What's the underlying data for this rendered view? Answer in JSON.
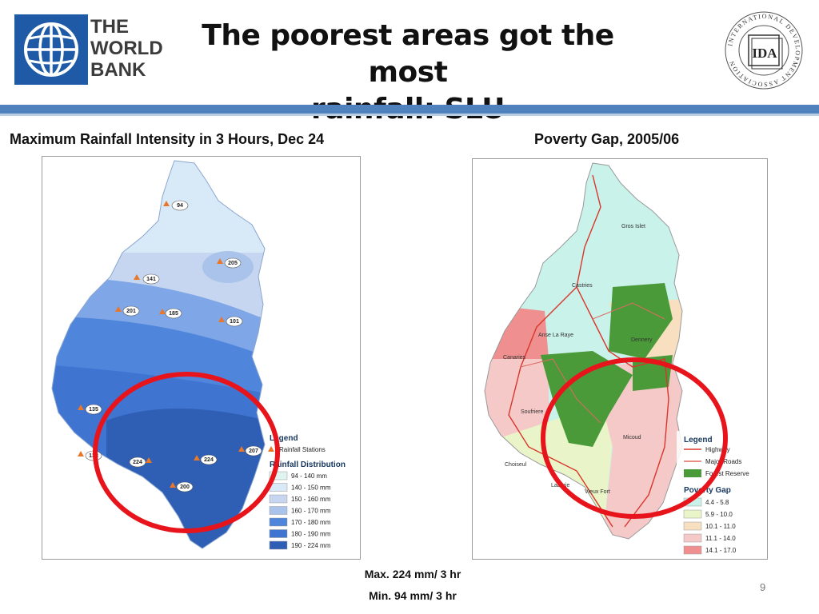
{
  "header": {
    "org_logo_text": [
      "THE",
      "WORLD",
      "BANK"
    ],
    "title_line1": "The poorest areas got the most",
    "title_line2": "rainfall: SLU",
    "ida_ring_text": "INTERNATIONAL DEVELOPMENT ASSOCIATION",
    "ida_mark": "IDA",
    "colors": {
      "bar": "#4f81bd",
      "bar_light": "#b9cde5"
    }
  },
  "left_map": {
    "title": "Maximum Rainfall Intensity in 3 Hours, Dec 24",
    "stations": [
      {
        "value": "94"
      },
      {
        "value": "205"
      },
      {
        "value": "141"
      },
      {
        "value": "201"
      },
      {
        "value": "185"
      },
      {
        "value": "101"
      },
      {
        "value": "135"
      },
      {
        "value": "138"
      },
      {
        "value": "224"
      },
      {
        "value": "224"
      },
      {
        "value": "207"
      },
      {
        "value": "200"
      }
    ],
    "legend": {
      "title": "Legend",
      "station_label": "Rainfall Stations",
      "distribution_title": "Rainfall Distribution",
      "classes": [
        {
          "label": "94 - 140 mm",
          "color": "#dff3f1"
        },
        {
          "label": "140 - 150 mm",
          "color": "#d8e9f7"
        },
        {
          "label": "150 - 160 mm",
          "color": "#c6d6f0"
        },
        {
          "label": "160 - 170 mm",
          "color": "#a9c3ea"
        },
        {
          "label": "170 - 180 mm",
          "color": "#4f86dc"
        },
        {
          "label": "180 - 190 mm",
          "color": "#3f74d1"
        },
        {
          "label": "190 - 224 mm",
          "color": "#2f5fb5"
        }
      ]
    }
  },
  "right_map": {
    "title": "Poverty Gap, 2005/06",
    "places": [
      "Gros Islet",
      "Castries",
      "Anse La Raye",
      "Canaries",
      "Dennery",
      "Soufriere",
      "Micoud",
      "Choiseul",
      "Laborie",
      "Vieux Fort"
    ],
    "legend": {
      "title": "Legend",
      "lines": [
        {
          "label": "Highway",
          "color": "#d9362b"
        },
        {
          "label": "Major Roads",
          "color": "#e06a5f"
        },
        {
          "label": "Forest Reserve",
          "color": "#4a9a3a"
        }
      ],
      "gap_title": "Poverty Gap",
      "classes": [
        {
          "label": "4.4 - 5.8",
          "color": "#c9f2ea"
        },
        {
          "label": "5.9 - 10.0",
          "color": "#e9f5c8"
        },
        {
          "label": "10.1 - 11.0",
          "color": "#f7dfbf"
        },
        {
          "label": "11.1 - 14.0",
          "color": "#f6c9c9"
        },
        {
          "label": "14.1 - 17.0",
          "color": "#ef8f8f"
        }
      ]
    }
  },
  "notes": {
    "max": "Max. 224 mm/ 3 hr",
    "min": "Min. 94 mm/ 3 hr"
  },
  "slide_number": "9",
  "highlight_color": "#e8141b"
}
